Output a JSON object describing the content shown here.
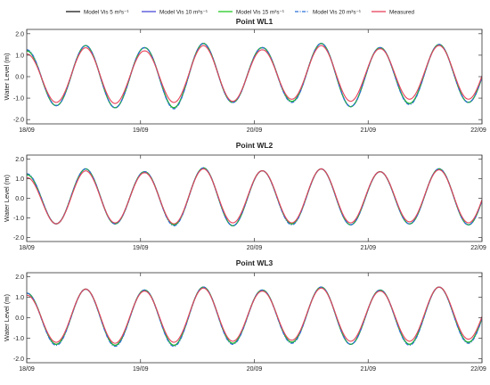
{
  "chart_data": {
    "type": "line",
    "legend": {
      "placement": "top",
      "entries": [
        {
          "label": "Model Vis 5 m²s⁻¹",
          "color": "#1a1a1a",
          "style": "solid"
        },
        {
          "label": "Model Vis 10 m²s⁻¹",
          "color": "#4a4ad8",
          "style": "solid"
        },
        {
          "label": "Model Vis 15 m²s⁻¹",
          "color": "#22c822",
          "style": "solid"
        },
        {
          "label": "Model Vis 20 m²s⁻¹",
          "color": "#2a6fd6",
          "style": "dashdot"
        },
        {
          "label": "Measured",
          "color": "#e8425a",
          "style": "solid"
        }
      ]
    },
    "panels": [
      {
        "title": "Point WL1",
        "ylabel": "Water Level (m)",
        "ylim": [
          -2.2,
          2.2
        ],
        "yticks": [
          "2.0",
          "1.0",
          "0.0",
          "-1.0",
          "-2.0"
        ],
        "ytick_values": [
          2,
          1,
          0,
          -1,
          -2
        ],
        "xticks": [
          "18/09",
          "19/09",
          "20/09",
          "21/09",
          "22/09"
        ],
        "xlim_days": [
          0,
          4
        ],
        "grid": false,
        "series": [
          {
            "name": "Model Vis 5 m²s⁻¹",
            "high": [
              1.2,
              1.45,
              1.35,
              1.55,
              1.35,
              1.55,
              1.35,
              1.5
            ],
            "low": [
              -1.35,
              -1.45,
              -1.45,
              -1.2,
              -1.15,
              -1.4,
              -1.25,
              -1.2
            ]
          },
          {
            "name": "Model Vis 10 m²s⁻¹",
            "high": [
              1.2,
              1.45,
              1.35,
              1.55,
              1.35,
              1.55,
              1.35,
              1.5
            ],
            "low": [
              -1.35,
              -1.45,
              -1.45,
              -1.2,
              -1.15,
              -1.4,
              -1.25,
              -1.2
            ]
          },
          {
            "name": "Model Vis 15 m²s⁻¹",
            "high": [
              1.2,
              1.45,
              1.35,
              1.55,
              1.35,
              1.55,
              1.35,
              1.5
            ],
            "low": [
              -1.35,
              -1.45,
              -1.45,
              -1.2,
              -1.15,
              -1.4,
              -1.25,
              -1.2
            ]
          },
          {
            "name": "Model Vis 20 m²s⁻¹",
            "high": [
              1.25,
              1.45,
              1.35,
              1.55,
              1.35,
              1.55,
              1.35,
              1.5
            ],
            "low": [
              -1.35,
              -1.45,
              -1.5,
              -1.2,
              -1.2,
              -1.4,
              -1.3,
              -1.2
            ]
          },
          {
            "name": "Measured",
            "high": [
              1.05,
              1.35,
              1.2,
              1.45,
              1.25,
              1.45,
              1.3,
              1.45
            ],
            "low": [
              -1.2,
              -1.25,
              -1.2,
              -1.15,
              -1.05,
              -1.15,
              -1.05,
              -1.05
            ]
          }
        ]
      },
      {
        "title": "Point WL2",
        "ylabel": "Water Level (m)",
        "ylim": [
          -2.2,
          2.2
        ],
        "yticks": [
          "2.0",
          "1.0",
          "0.0",
          "-1.0",
          "-2.0"
        ],
        "ytick_values": [
          2,
          1,
          0,
          -1,
          -2
        ],
        "xticks": [
          "18/09",
          "19/09",
          "20/09",
          "21/09",
          "22/09"
        ],
        "xlim_days": [
          0,
          4
        ],
        "grid": false,
        "series": [
          {
            "name": "Model Vis 5 m²s⁻¹",
            "high": [
              1.2,
              1.5,
              1.35,
              1.55,
              1.4,
              1.5,
              1.35,
              1.5
            ],
            "low": [
              -1.3,
              -1.3,
              -1.35,
              -1.4,
              -1.3,
              -1.35,
              -1.3,
              -1.35
            ]
          },
          {
            "name": "Model Vis 10 m²s⁻¹",
            "high": [
              1.2,
              1.5,
              1.35,
              1.55,
              1.4,
              1.5,
              1.35,
              1.5
            ],
            "low": [
              -1.3,
              -1.3,
              -1.35,
              -1.4,
              -1.3,
              -1.35,
              -1.3,
              -1.35
            ]
          },
          {
            "name": "Model Vis 15 m²s⁻¹",
            "high": [
              1.2,
              1.5,
              1.35,
              1.55,
              1.4,
              1.5,
              1.35,
              1.5
            ],
            "low": [
              -1.3,
              -1.3,
              -1.35,
              -1.4,
              -1.3,
              -1.35,
              -1.3,
              -1.35
            ]
          },
          {
            "name": "Model Vis 20 m²s⁻¹",
            "high": [
              1.25,
              1.5,
              1.35,
              1.55,
              1.4,
              1.5,
              1.35,
              1.5
            ],
            "low": [
              -1.3,
              -1.3,
              -1.4,
              -1.4,
              -1.35,
              -1.35,
              -1.3,
              -1.35
            ]
          },
          {
            "name": "Measured",
            "high": [
              1.05,
              1.4,
              1.3,
              1.5,
              1.4,
              1.5,
              1.35,
              1.45
            ],
            "low": [
              -1.3,
              -1.25,
              -1.3,
              -1.25,
              -1.25,
              -1.25,
              -1.2,
              -1.25
            ]
          }
        ]
      },
      {
        "title": "Point WL3",
        "ylabel": "Water Level (m)",
        "ylim": [
          -2.2,
          2.2
        ],
        "yticks": [
          "2.0",
          "1.0",
          "0.0",
          "-1.0",
          "-2.0"
        ],
        "ytick_values": [
          2,
          1,
          0,
          -1,
          -2
        ],
        "xticks": [
          "18/09",
          "19/09",
          "20/09",
          "21/09",
          "22/09"
        ],
        "xlim_days": [
          0,
          4
        ],
        "grid": false,
        "series": [
          {
            "name": "Model Vis 5 m²s⁻¹",
            "high": [
              1.2,
              1.4,
              1.35,
              1.5,
              1.35,
              1.5,
              1.35,
              1.5
            ],
            "low": [
              -1.3,
              -1.35,
              -1.35,
              -1.25,
              -1.2,
              -1.3,
              -1.3,
              -1.2
            ]
          },
          {
            "name": "Model Vis 10 m²s⁻¹",
            "high": [
              1.2,
              1.4,
              1.35,
              1.5,
              1.35,
              1.5,
              1.35,
              1.5
            ],
            "low": [
              -1.3,
              -1.35,
              -1.35,
              -1.25,
              -1.2,
              -1.3,
              -1.3,
              -1.2
            ]
          },
          {
            "name": "Model Vis 15 m²s⁻¹",
            "high": [
              1.2,
              1.4,
              1.35,
              1.5,
              1.35,
              1.5,
              1.35,
              1.5
            ],
            "low": [
              -1.3,
              -1.35,
              -1.35,
              -1.25,
              -1.2,
              -1.3,
              -1.3,
              -1.2
            ]
          },
          {
            "name": "Model Vis 20 m²s⁻¹",
            "high": [
              1.2,
              1.4,
              1.35,
              1.5,
              1.35,
              1.5,
              1.35,
              1.5
            ],
            "low": [
              -1.35,
              -1.4,
              -1.4,
              -1.3,
              -1.25,
              -1.3,
              -1.35,
              -1.25
            ]
          },
          {
            "name": "Measured",
            "high": [
              1.1,
              1.4,
              1.3,
              1.45,
              1.3,
              1.45,
              1.3,
              1.5
            ],
            "low": [
              -1.2,
              -1.25,
              -1.2,
              -1.15,
              -1.1,
              -1.15,
              -1.15,
              -1.05
            ]
          }
        ]
      }
    ],
    "phase_days": 0.0,
    "period_days": 0.5175
  }
}
